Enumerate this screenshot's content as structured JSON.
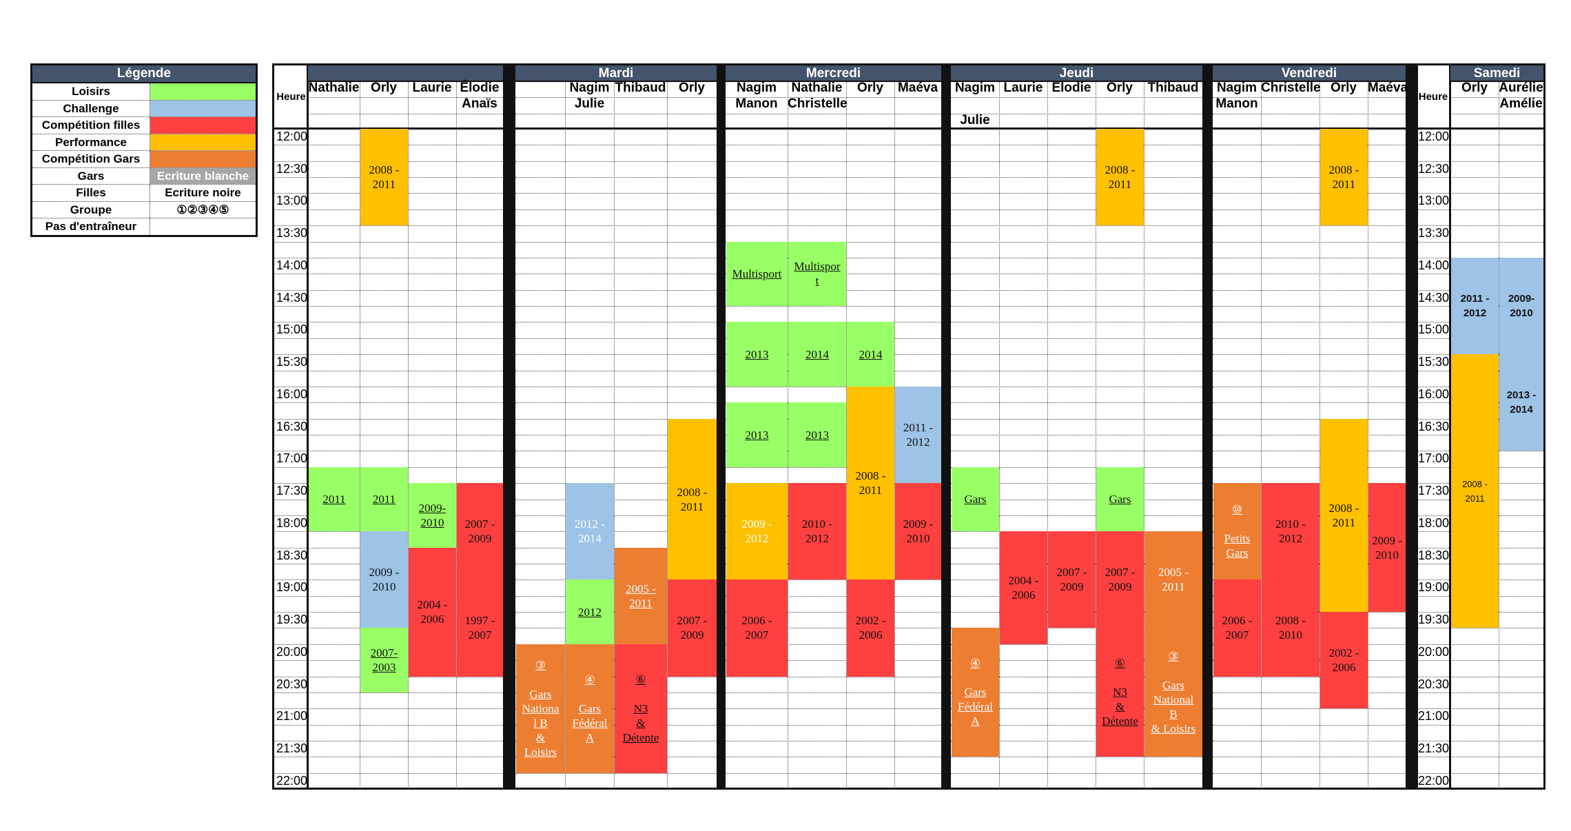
{
  "colors": {
    "loisirs": "#99ff66",
    "challenge": "#9dc3e6",
    "competition_filles": "#ff4040",
    "performance": "#ffc000",
    "competition_gars": "#ed7d31",
    "header": "#44546a",
    "gars_bg": "#a6a6a6"
  },
  "legend": {
    "title": "Légende",
    "rows": [
      {
        "label": "Loisirs",
        "value": "",
        "type": "loisirs"
      },
      {
        "label": "Challenge",
        "value": "",
        "type": "challenge"
      },
      {
        "label": "Compétition filles",
        "value": "",
        "type": "competition_filles"
      },
      {
        "label": "Performance",
        "value": "",
        "type": "performance"
      },
      {
        "label": "Compétition Gars",
        "value": "",
        "type": "competition_gars"
      },
      {
        "label": "Gars",
        "value": "Ecriture blanche",
        "type": "gars"
      },
      {
        "label": "Filles",
        "value": "Ecriture noire",
        "type": "filles"
      },
      {
        "label": "Groupe",
        "value": "①②③④⑤",
        "type": "groupe"
      },
      {
        "label": "Pas d'entraîneur",
        "value": "",
        "type": "none"
      }
    ]
  },
  "schedule": {
    "heure_label": "Heure",
    "times": [
      "12:00",
      "12:30",
      "13:00",
      "13:30",
      "14:00",
      "14:30",
      "15:00",
      "15:30",
      "16:00",
      "16:30",
      "17:00",
      "17:30",
      "18:00",
      "18:30",
      "19:00",
      "19:30",
      "20:00",
      "20:30",
      "21:00",
      "21:30",
      "22:00"
    ],
    "days": [
      {
        "name": "",
        "columns": [
          {
            "lines": [
              "Nathalie",
              "",
              ""
            ]
          },
          {
            "lines": [
              "Orly",
              "",
              ""
            ]
          },
          {
            "lines": [
              "Laurie",
              "",
              ""
            ]
          },
          {
            "lines": [
              "Élodie",
              "Anaïs",
              ""
            ]
          }
        ]
      },
      {
        "name": "Mardi",
        "columns": [
          {
            "lines": [
              "",
              "",
              ""
            ]
          },
          {
            "lines": [
              "Nagim",
              "Julie",
              ""
            ]
          },
          {
            "lines": [
              "Thibaud",
              "",
              ""
            ]
          },
          {
            "lines": [
              "Orly",
              "",
              ""
            ]
          }
        ]
      },
      {
        "name": "Mercredi",
        "columns": [
          {
            "lines": [
              "Nagim",
              "Manon",
              ""
            ]
          },
          {
            "lines": [
              "Nathalie",
              "Christelle",
              ""
            ]
          },
          {
            "lines": [
              "Orly",
              "",
              ""
            ]
          },
          {
            "lines": [
              "Maéva",
              "",
              ""
            ]
          }
        ]
      },
      {
        "name": "Jeudi",
        "columns": [
          {
            "lines": [
              "Nagim",
              "",
              "Julie"
            ]
          },
          {
            "lines": [
              "Laurie",
              "",
              ""
            ]
          },
          {
            "lines": [
              "Elodie",
              "",
              ""
            ]
          },
          {
            "lines": [
              "Orly",
              "",
              ""
            ]
          },
          {
            "lines": [
              "Thibaud",
              "",
              ""
            ]
          }
        ]
      },
      {
        "name": "Vendredi",
        "columns": [
          {
            "lines": [
              "Nagim",
              "Manon",
              ""
            ]
          },
          {
            "lines": [
              "Christelle",
              "",
              ""
            ]
          },
          {
            "lines": [
              "Orly",
              "",
              ""
            ]
          },
          {
            "lines": [
              "Maéva",
              "",
              ""
            ]
          }
        ]
      },
      {
        "name": "Samedi",
        "columns": [
          {
            "lines": [
              "Orly",
              "",
              ""
            ]
          },
          {
            "lines": [
              "Aurélie",
              "Amélie",
              ""
            ]
          }
        ]
      }
    ],
    "blocks": [
      {
        "day": 0,
        "col": 1,
        "start": 0,
        "end": 6,
        "type": "performance",
        "text": "2008 -\n2011"
      },
      {
        "day": 0,
        "col": 0,
        "start": 21,
        "end": 25,
        "type": "loisirs",
        "text": "2011",
        "underline": true
      },
      {
        "day": 0,
        "col": 1,
        "start": 21,
        "end": 25,
        "type": "loisirs",
        "text": "2011",
        "underline": true
      },
      {
        "day": 0,
        "col": 2,
        "start": 22,
        "end": 26,
        "type": "loisirs",
        "text": "2009-\n2010",
        "underline": true
      },
      {
        "day": 0,
        "col": 3,
        "start": 22,
        "end": 28,
        "type": "competition_filles",
        "text": "2007 -\n2009"
      },
      {
        "day": 0,
        "col": 1,
        "start": 25,
        "end": 31,
        "type": "challenge",
        "text": "2009 -\n2010"
      },
      {
        "day": 0,
        "col": 2,
        "start": 26,
        "end": 34,
        "type": "competition_filles",
        "text": "2004 -\n2006"
      },
      {
        "day": 0,
        "col": 3,
        "start": 28,
        "end": 34,
        "type": "competition_filles",
        "text": "1997 -\n2007"
      },
      {
        "day": 0,
        "col": 1,
        "start": 31,
        "end": 35,
        "type": "loisirs",
        "text": "2007-\n2003",
        "underline": true
      },
      {
        "day": 1,
        "col": 1,
        "start": 22,
        "end": 28,
        "type": "challenge",
        "text": "2012 -\n2014",
        "white": true
      },
      {
        "day": 1,
        "col": 1,
        "start": 28,
        "end": 32,
        "type": "loisirs",
        "text": "2012",
        "underline": true
      },
      {
        "day": 1,
        "col": 2,
        "start": 26,
        "end": 32,
        "type": "competition_gars",
        "text": "2005 -\n2011",
        "white": true,
        "underline": true
      },
      {
        "day": 1,
        "col": 3,
        "start": 18,
        "end": 28,
        "type": "performance",
        "text": "2008 -\n2011"
      },
      {
        "day": 1,
        "col": 3,
        "start": 28,
        "end": 34,
        "type": "competition_filles",
        "text": "2007 -\n2009"
      },
      {
        "day": 1,
        "col": 0,
        "start": 32,
        "end": 40,
        "type": "competition_gars",
        "text": "③\n\nGars\nNationa\nl B\n&\nLoisirs",
        "white": true,
        "underline": true
      },
      {
        "day": 1,
        "col": 1,
        "start": 32,
        "end": 40,
        "type": "competition_gars",
        "text": "④\n\nGars\nFédéral\nA",
        "white": true,
        "underline": true
      },
      {
        "day": 1,
        "col": 2,
        "start": 32,
        "end": 40,
        "type": "competition_filles",
        "text": "⑥\n\nN3\n&\nDétente",
        "underline": true
      },
      {
        "day": 2,
        "col": 0,
        "start": 7,
        "end": 11,
        "type": "loisirs",
        "text": "Multisport",
        "underline": true
      },
      {
        "day": 2,
        "col": 1,
        "start": 7,
        "end": 11,
        "type": "loisirs",
        "text": "Multispor\nt",
        "underline": true
      },
      {
        "day": 2,
        "col": 0,
        "start": 12,
        "end": 16,
        "type": "loisirs",
        "text": "2013",
        "underline": true
      },
      {
        "day": 2,
        "col": 1,
        "start": 12,
        "end": 16,
        "type": "loisirs",
        "text": "2014",
        "underline": true
      },
      {
        "day": 2,
        "col": 2,
        "start": 12,
        "end": 16,
        "type": "loisirs",
        "text": "2014",
        "underline": true
      },
      {
        "day": 2,
        "col": 0,
        "start": 17,
        "end": 21,
        "type": "loisirs",
        "text": "2013",
        "underline": true
      },
      {
        "day": 2,
        "col": 1,
        "start": 17,
        "end": 21,
        "type": "loisirs",
        "text": "2013",
        "underline": true
      },
      {
        "day": 2,
        "col": 2,
        "start": 16,
        "end": 28,
        "type": "performance",
        "text": "2008 -\n2011"
      },
      {
        "day": 2,
        "col": 3,
        "start": 16,
        "end": 22,
        "type": "challenge",
        "text": "2011 -\n2012"
      },
      {
        "day": 2,
        "col": 0,
        "start": 22,
        "end": 28,
        "type": "performance",
        "text": "2009 -\n2012",
        "white": true
      },
      {
        "day": 2,
        "col": 1,
        "start": 22,
        "end": 28,
        "type": "competition_filles",
        "text": "2010 -\n2012"
      },
      {
        "day": 2,
        "col": 3,
        "start": 22,
        "end": 28,
        "type": "competition_filles",
        "text": "2009 -\n2010"
      },
      {
        "day": 2,
        "col": 0,
        "start": 28,
        "end": 34,
        "type": "competition_filles",
        "text": "2006 -\n2007"
      },
      {
        "day": 2,
        "col": 2,
        "start": 28,
        "end": 34,
        "type": "competition_filles",
        "text": "2002 -\n2006"
      },
      {
        "day": 3,
        "col": 3,
        "start": 0,
        "end": 6,
        "type": "performance",
        "text": "2008 -\n2011"
      },
      {
        "day": 3,
        "col": 0,
        "start": 21,
        "end": 25,
        "type": "loisirs",
        "text": "Gars",
        "underline": true
      },
      {
        "day": 3,
        "col": 3,
        "start": 21,
        "end": 25,
        "type": "loisirs",
        "text": "Gars",
        "underline": true
      },
      {
        "day": 3,
        "col": 1,
        "start": 25,
        "end": 32,
        "type": "competition_filles",
        "text": "2004 -\n2006"
      },
      {
        "day": 3,
        "col": 2,
        "start": 25,
        "end": 31,
        "type": "competition_filles",
        "text": "2007 -\n2009"
      },
      {
        "day": 3,
        "col": 3,
        "start": 25,
        "end": 31,
        "type": "competition_filles",
        "text": "2007 -\n2009"
      },
      {
        "day": 3,
        "col": 4,
        "start": 25,
        "end": 31,
        "type": "competition_gars",
        "text": "2005 -\n2011",
        "white": true
      },
      {
        "day": 3,
        "col": 0,
        "start": 31,
        "end": 39,
        "type": "competition_gars",
        "text": "④\n\nGars\nFédéral\nA",
        "white": true,
        "underline": true
      },
      {
        "day": 3,
        "col": 3,
        "start": 31,
        "end": 39,
        "type": "competition_filles",
        "text": "⑥\n\nN3\n&\nDétente",
        "underline": true
      },
      {
        "day": 3,
        "col": 4,
        "start": 31,
        "end": 39,
        "type": "competition_gars",
        "text": "③\n\nGars\nNational\nB\n& Loisirs",
        "white": true,
        "underline": true
      },
      {
        "day": 4,
        "col": 2,
        "start": 0,
        "end": 6,
        "type": "performance",
        "text": "2008 -\n2011"
      },
      {
        "day": 4,
        "col": 0,
        "start": 22,
        "end": 28,
        "type": "competition_gars",
        "text": "⑩\n\nPetits\nGars",
        "white": true,
        "underline": true
      },
      {
        "day": 4,
        "col": 1,
        "start": 22,
        "end": 28,
        "type": "competition_filles",
        "text": "2010 -\n2012"
      },
      {
        "day": 4,
        "col": 2,
        "start": 18,
        "end": 30,
        "type": "performance",
        "text": "2008 -\n2011"
      },
      {
        "day": 4,
        "col": 3,
        "start": 22,
        "end": 30,
        "type": "competition_filles",
        "text": "2009 -\n2010"
      },
      {
        "day": 4,
        "col": 0,
        "start": 28,
        "end": 34,
        "type": "competition_filles",
        "text": "2006 -\n2007"
      },
      {
        "day": 4,
        "col": 1,
        "start": 28,
        "end": 34,
        "type": "competition_filles",
        "text": "2008 -\n2010"
      },
      {
        "day": 4,
        "col": 2,
        "start": 30,
        "end": 36,
        "type": "competition_filles",
        "text": "2002 -\n2006"
      },
      {
        "day": 5,
        "col": 0,
        "start": 8,
        "end": 14,
        "type": "challenge",
        "text": "2011 -\n2012",
        "sat": true
      },
      {
        "day": 5,
        "col": 1,
        "start": 8,
        "end": 14,
        "type": "challenge",
        "text": "2009-\n2010",
        "sat": true
      },
      {
        "day": 5,
        "col": 1,
        "start": 14,
        "end": 20,
        "type": "challenge",
        "text": "2013 -\n2014",
        "sat": true
      },
      {
        "day": 5,
        "col": 0,
        "start": 14,
        "end": 31,
        "type": "performance",
        "text": "2008 -\n2011",
        "satsmall": true
      }
    ]
  }
}
